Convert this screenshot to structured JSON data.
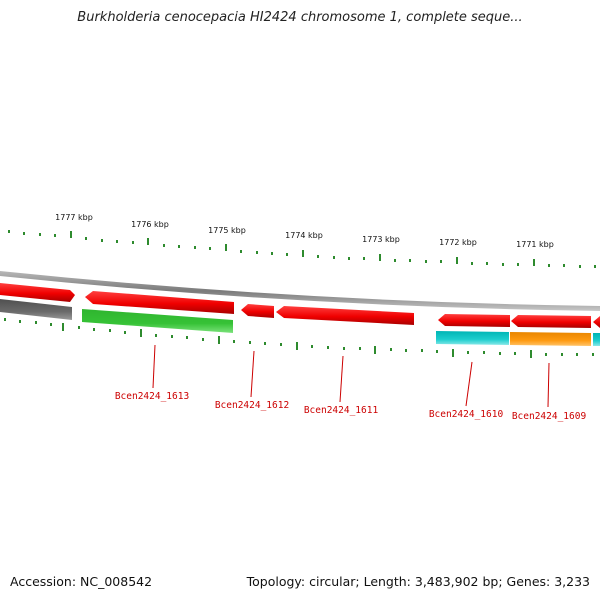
{
  "header": {
    "title": "Burkholderia cenocepacia HI2424 chromosome 1, complete seque..."
  },
  "map": {
    "colors": {
      "backbone": "#8c8c8c",
      "tick": "#2e8b2e",
      "tick_label": "#111111",
      "locus_label": "#cc0000"
    },
    "kbp_labels": [
      {
        "kbp": 1777,
        "text": "1777 kbp"
      },
      {
        "kbp": 1776,
        "text": "1776 kbp"
      },
      {
        "kbp": 1775,
        "text": "1775 kbp"
      },
      {
        "kbp": 1774,
        "text": "1774 kbp"
      },
      {
        "kbp": 1773,
        "text": "1773 kbp"
      },
      {
        "kbp": 1772,
        "text": "1772 kbp"
      },
      {
        "kbp": 1771,
        "text": "1771 kbp"
      }
    ],
    "features": [
      {
        "strand": "forward",
        "direction": "right",
        "color": "red"
      },
      {
        "strand": "forward",
        "direction": "left",
        "color": "red",
        "locus": "Bcen2424_1613"
      },
      {
        "strand": "forward",
        "direction": "left",
        "color": "red",
        "locus": "Bcen2424_1612"
      },
      {
        "strand": "forward",
        "direction": "left",
        "color": "red",
        "locus": "Bcen2424_1611"
      },
      {
        "strand": "forward",
        "direction": "left",
        "color": "red",
        "locus": "Bcen2424_1610"
      },
      {
        "strand": "forward",
        "direction": "left",
        "color": "red",
        "locus": "Bcen2424_1609"
      },
      {
        "strand": "forward",
        "direction": "left",
        "color": "red"
      },
      {
        "strand": "reverse",
        "direction": "none",
        "color": "gray"
      },
      {
        "strand": "reverse",
        "direction": "none",
        "color": "green"
      },
      {
        "strand": "reverse",
        "direction": "none",
        "color": "cyan"
      },
      {
        "strand": "reverse",
        "direction": "none",
        "color": "orange"
      },
      {
        "strand": "reverse",
        "direction": "none",
        "color": "cyan"
      }
    ]
  },
  "footer": {
    "accession": "Accession: NC_008542",
    "summary": "Topology: circular; Length: 3,483,902 bp; Genes: 3,233"
  }
}
